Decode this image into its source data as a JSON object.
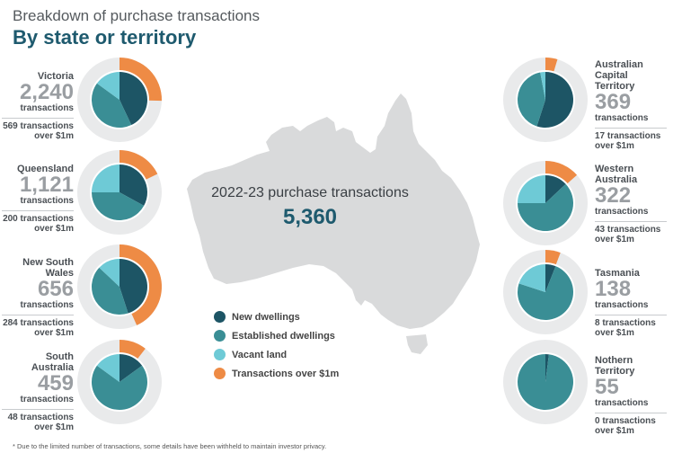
{
  "header": {
    "subtitle": "Breakdown of purchase transactions",
    "title": "By state or territory"
  },
  "center": {
    "label": "2022-23 purchase transactions",
    "value": "5,360"
  },
  "legend": [
    {
      "label": "New dwellings",
      "color": "#1d5565"
    },
    {
      "label": "Established dwellings",
      "color": "#3a8e95"
    },
    {
      "label": "Vacant land",
      "color": "#6ecad6"
    },
    {
      "label": "Transactions over $1m",
      "color": "#ee8b45"
    }
  ],
  "footnote": "* Due to the limited number of transactions, some details have been withheld to maintain investor privacy.",
  "states": [
    {
      "name": "Victoria",
      "count": "2,240",
      "unit": "transactions",
      "over_count": "569",
      "over_line1": "transactions",
      "over_line2": "over $1m"
    },
    {
      "name": "Queensland",
      "count": "1,121",
      "unit": "transactions",
      "over_count": "200",
      "over_line1": "transactions",
      "over_line2": "over $1m"
    },
    {
      "name": "New South Wales",
      "count": "656",
      "unit": "transactions",
      "over_count": "284",
      "over_line1": "transactions",
      "over_line2": "over $1m"
    },
    {
      "name": "South Australia",
      "count": "459",
      "unit": "transactions",
      "over_count": "48",
      "over_line1": "transactions",
      "over_line2": "over $1m"
    },
    {
      "name_line1": "Australian Capital",
      "name_line2": "Territory",
      "count": "369",
      "unit": "transactions",
      "over_count": "17",
      "over_line1": "transactions",
      "over_line2": "over $1m"
    },
    {
      "name": "Western Australia",
      "count": "322",
      "unit": "transactions",
      "over_count": "43",
      "over_line1": "transactions",
      "over_line2": "over $1m"
    },
    {
      "name": "Tasmania",
      "count": "138",
      "unit": "transactions",
      "over_count": "8",
      "over_line1": "transactions",
      "over_line2": "over $1m"
    },
    {
      "name": "Nothern Territory",
      "count": "55",
      "unit": "transactions",
      "over_count": "0",
      "over_line1": "transactions",
      "over_line2": "over $1m"
    }
  ],
  "chart_data": {
    "type": "pie",
    "total": 5360,
    "series_names": [
      "New dwellings",
      "Established dwellings",
      "Vacant land",
      "Transactions over $1m"
    ],
    "pies": [
      {
        "state": "Victoria",
        "total": 2240,
        "new_dwellings": 0.43,
        "established_dwellings": 0.42,
        "vacant_land": 0.15,
        "over_1m": 0.254
      },
      {
        "state": "Queensland",
        "total": 1121,
        "new_dwellings": 0.33,
        "established_dwellings": 0.42,
        "vacant_land": 0.25,
        "over_1m": 0.178
      },
      {
        "state": "New South Wales",
        "total": 656,
        "new_dwellings": 0.45,
        "established_dwellings": 0.42,
        "vacant_land": 0.13,
        "over_1m": 0.433
      },
      {
        "state": "South Australia",
        "total": 459,
        "new_dwellings": 0.15,
        "established_dwellings": 0.7,
        "vacant_land": 0.15,
        "over_1m": 0.105
      },
      {
        "state": "Australian Capital Territory",
        "total": 369,
        "new_dwellings": 0.55,
        "established_dwellings": 0.42,
        "vacant_land": 0.03,
        "over_1m": 0.046
      },
      {
        "state": "Western Australia",
        "total": 322,
        "new_dwellings": 0.13,
        "established_dwellings": 0.62,
        "vacant_land": 0.25,
        "over_1m": 0.134
      },
      {
        "state": "Tasmania",
        "total": 138,
        "new_dwellings": 0.06,
        "established_dwellings": 0.74,
        "vacant_land": 0.2,
        "over_1m": 0.058
      },
      {
        "state": "Nothern Territory",
        "total": 55,
        "new_dwellings": 0.02,
        "established_dwellings": 0.98,
        "vacant_land": 0.0,
        "over_1m": 0.0
      }
    ]
  }
}
